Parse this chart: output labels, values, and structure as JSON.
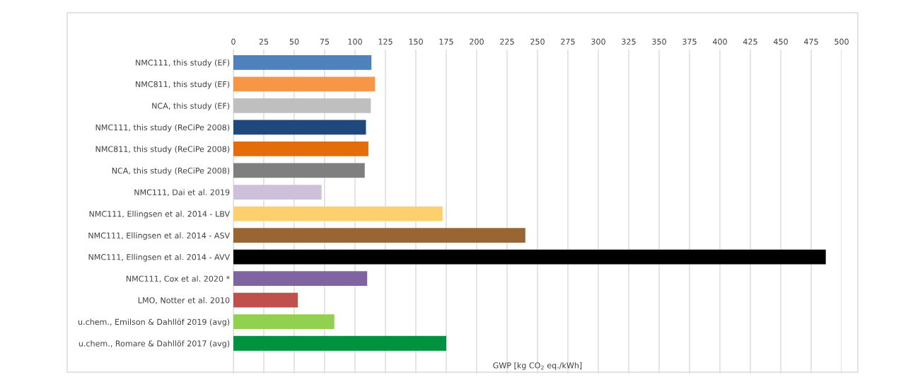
{
  "chart_data": {
    "type": "bar",
    "orientation": "horizontal",
    "categories": [
      "NMC111, this study (EF)",
      "NMC811, this study (EF)",
      "NCA, this study (EF)",
      "NMC111, this study (ReCiPe 2008)",
      "NMC811, this study (ReCiPe 2008)",
      "NCA, this study (ReCiPe 2008)",
      "NMC111, Dai et al. 2019",
      "NMC111, Ellingsen et al. 2014 - LBV",
      "NMC111, Ellingsen et al. 2014 - ASV",
      "NMC111, Ellingsen et al. 2014 - AVV",
      "NMC111, Cox et al. 2020 *",
      "LMO, Notter et al. 2010",
      "u.chem., Emilson & Dahllöf 2019 (avg)",
      "u.chem., Romare & Dahllöf 2017 (avg)"
    ],
    "values": [
      113.5,
      116.5,
      113,
      109,
      111,
      108,
      72.5,
      172,
      240,
      487,
      110,
      53,
      83,
      175
    ],
    "colors": [
      "#4f81bd",
      "#f79646",
      "#bfbfbf",
      "#1f497d",
      "#e46c0a",
      "#7f7f7f",
      "#ccc0da",
      "#fcd06c",
      "#996633",
      "#000000",
      "#8064a2",
      "#c0504d",
      "#92d050",
      "#00923f"
    ],
    "xlabel": "GWP [kg CO$_{2}$ eq./kWh]",
    "xlim": [
      0,
      500
    ],
    "xticks": [
      0,
      25,
      50,
      75,
      100,
      125,
      150,
      175,
      200,
      225,
      250,
      275,
      300,
      325,
      350,
      375,
      400,
      425,
      450,
      475,
      500
    ],
    "grid": "x"
  }
}
